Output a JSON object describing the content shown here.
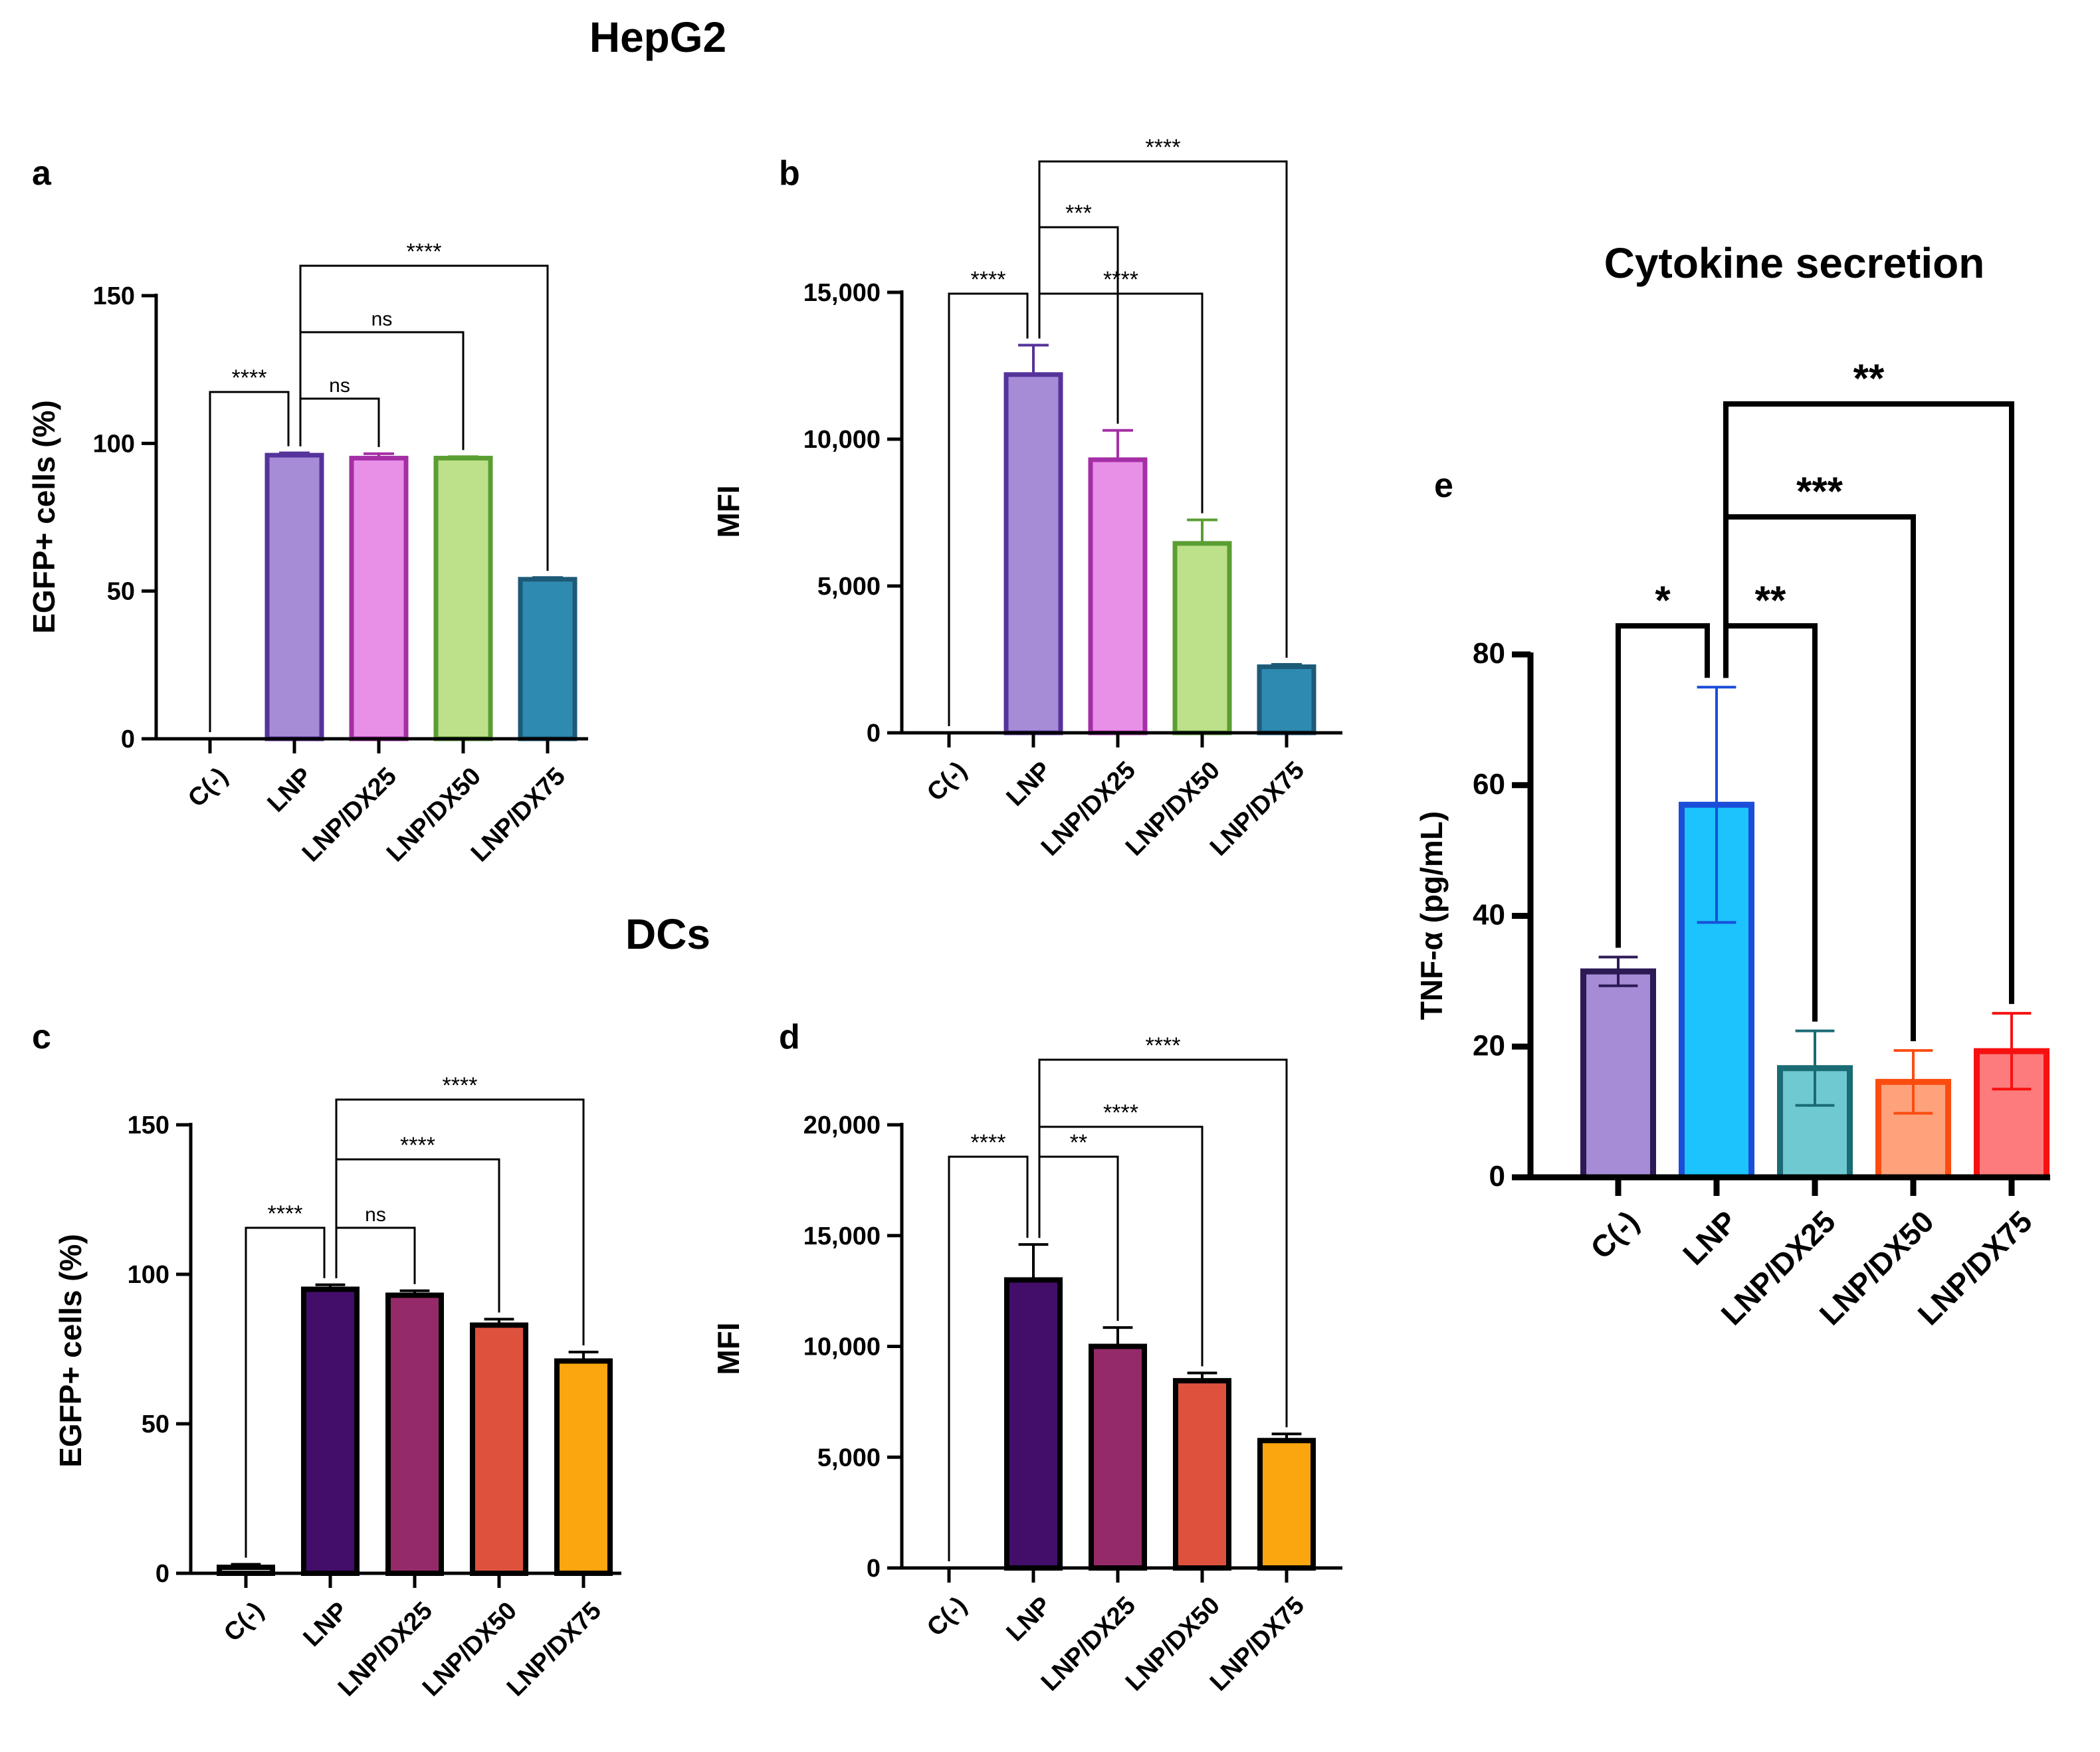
{
  "headings": {
    "hepg2": "HepG2",
    "dcs": "DCs",
    "cytokine": "Cytokine secretion"
  },
  "chart_data": [
    {
      "id": "a",
      "type": "bar",
      "panel_label": "a",
      "group": "HepG2",
      "ylabel": "EGFP+ cells (%)",
      "xlabel": "",
      "ylim": [
        0,
        150
      ],
      "yticks": [
        0,
        50,
        100,
        150
      ],
      "ytick_labels": [
        "0",
        "50",
        "100",
        "150"
      ],
      "categories": [
        "C(-)",
        "LNP",
        "LNP/DX25",
        "LNP/DX50",
        "LNP/DX75"
      ],
      "values": [
        0,
        96,
        95,
        95,
        54
      ],
      "errors": [
        0,
        0.8,
        1.5,
        0.5,
        0.6
      ],
      "fills": [
        "#ffffff",
        "#a68bd6",
        "#e88fe8",
        "#bde08a",
        "#2e8ab0"
      ],
      "strokes": [
        "#000000",
        "#55339a",
        "#a52ea5",
        "#5a9e32",
        "#1d5a78"
      ],
      "comparisons": [
        {
          "from": 0,
          "to": 1,
          "label": "****"
        },
        {
          "from": 1,
          "to": 2,
          "label": "ns"
        },
        {
          "from": 1,
          "to": 3,
          "label": "ns"
        },
        {
          "from": 1,
          "to": 4,
          "label": "****"
        }
      ]
    },
    {
      "id": "b",
      "type": "bar",
      "panel_label": "b",
      "group": "HepG2",
      "ylabel": "MFI",
      "xlabel": "",
      "ylim": [
        0,
        15000
      ],
      "yticks": [
        0,
        5000,
        10000,
        15000
      ],
      "ytick_labels": [
        "0",
        "5,000",
        "10,000",
        "15,000"
      ],
      "categories": [
        "C(-)",
        "LNP",
        "LNP/DX25",
        "LNP/DX50",
        "LNP/DX75"
      ],
      "values": [
        0,
        12200,
        9300,
        6450,
        2250
      ],
      "errors": [
        0,
        1000,
        1000,
        800,
        80
      ],
      "fills": [
        "#ffffff",
        "#a68bd6",
        "#e88fe8",
        "#bde08a",
        "#2e8ab0"
      ],
      "strokes": [
        "#000000",
        "#55339a",
        "#a52ea5",
        "#5a9e32",
        "#1d5a78"
      ],
      "comparisons": [
        {
          "from": 0,
          "to": 1,
          "label": "****"
        },
        {
          "from": 1,
          "to": 2,
          "label": "***"
        },
        {
          "from": 1,
          "to": 3,
          "label": "****"
        },
        {
          "from": 1,
          "to": 4,
          "label": "****"
        }
      ]
    },
    {
      "id": "c",
      "type": "bar",
      "panel_label": "c",
      "group": "DCs",
      "ylabel": "EGFP+ cells (%)",
      "xlabel": "",
      "ylim": [
        0,
        150
      ],
      "yticks": [
        0,
        50,
        100,
        150
      ],
      "ytick_labels": [
        "0",
        "50",
        "100",
        "150"
      ],
      "categories": [
        "C(-)",
        "LNP",
        "LNP/DX25",
        "LNP/DX50",
        "LNP/DX75"
      ],
      "values": [
        2,
        95,
        93,
        83,
        71
      ],
      "errors": [
        1,
        1.5,
        1.5,
        2,
        3
      ],
      "fills": [
        "#ffffff",
        "#430d6a",
        "#952a68",
        "#de523d",
        "#fba50f"
      ],
      "strokes": [
        "#000000",
        "#000000",
        "#000000",
        "#000000",
        "#000000"
      ],
      "comparisons": [
        {
          "from": 0,
          "to": 1,
          "label": "****"
        },
        {
          "from": 1,
          "to": 2,
          "label": "ns"
        },
        {
          "from": 1,
          "to": 3,
          "label": "****"
        },
        {
          "from": 1,
          "to": 4,
          "label": "****"
        }
      ]
    },
    {
      "id": "d",
      "type": "bar",
      "panel_label": "d",
      "group": "DCs",
      "ylabel": "MFI",
      "xlabel": "",
      "ylim": [
        0,
        20000
      ],
      "yticks": [
        0,
        5000,
        10000,
        15000,
        20000
      ],
      "ytick_labels": [
        "0",
        "5,000",
        "10,000",
        "15,000",
        "20,000"
      ],
      "categories": [
        "C(-)",
        "LNP",
        "LNP/DX25",
        "LNP/DX50",
        "LNP/DX75"
      ],
      "values": [
        0,
        13000,
        10000,
        8450,
        5750
      ],
      "errors": [
        0,
        1600,
        850,
        350,
        300
      ],
      "fills": [
        "#ffffff",
        "#430d6a",
        "#952a68",
        "#de523d",
        "#fba50f"
      ],
      "strokes": [
        "#000000",
        "#000000",
        "#000000",
        "#000000",
        "#000000"
      ],
      "comparisons": [
        {
          "from": 0,
          "to": 1,
          "label": "****"
        },
        {
          "from": 1,
          "to": 2,
          "label": "**"
        },
        {
          "from": 1,
          "to": 3,
          "label": "****"
        },
        {
          "from": 1,
          "to": 4,
          "label": "****"
        }
      ]
    },
    {
      "id": "e",
      "type": "bar",
      "panel_label": "e",
      "group": "Cytokine secretion",
      "ylabel": "TNF-α (pg/mL)",
      "xlabel": "",
      "ylim": [
        0,
        80
      ],
      "yticks": [
        0,
        20,
        40,
        60,
        80
      ],
      "ytick_labels": [
        "0",
        "20",
        "40",
        "60",
        "80"
      ],
      "categories": [
        "C(-)",
        "LNP",
        "LNP/DX25",
        "LNP/DX50",
        "LNP/DX75"
      ],
      "values": [
        31.5,
        57,
        16.7,
        14.6,
        19.3
      ],
      "errors": [
        2.2,
        18,
        5.7,
        4.8,
        5.8
      ],
      "fills": [
        "#a68bd6",
        "#1cc3fc",
        "#6fc9d1",
        "#fea27c",
        "#fd7b7c"
      ],
      "strokes": [
        "#2c1a55",
        "#1a4ed8",
        "#1a6b74",
        "#fb4c10",
        "#f61010"
      ],
      "comparisons": [
        {
          "from": 0,
          "to": 1,
          "label": "*"
        },
        {
          "from": 1,
          "to": 2,
          "label": "**"
        },
        {
          "from": 1,
          "to": 3,
          "label": "***"
        },
        {
          "from": 1,
          "to": 4,
          "label": "**"
        }
      ]
    }
  ]
}
